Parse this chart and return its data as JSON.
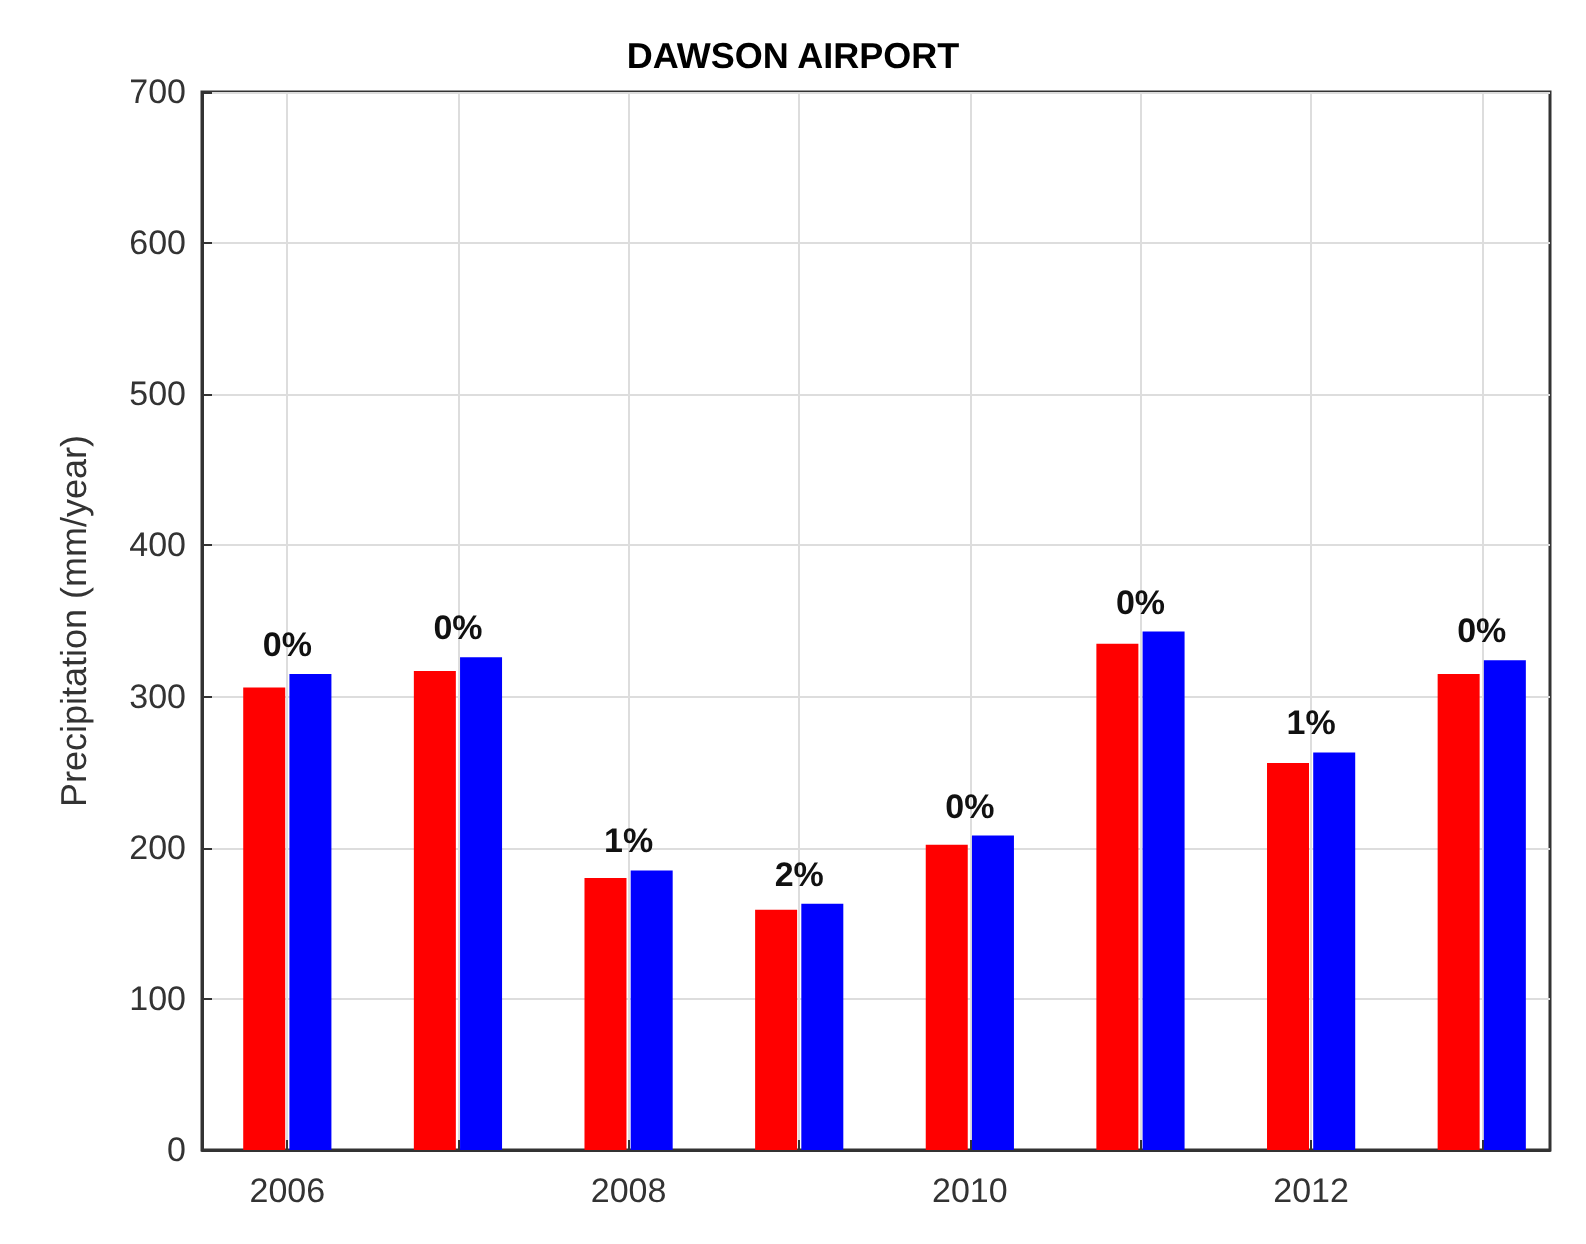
{
  "chart_data": {
    "type": "bar",
    "title": "DAWSON AIRPORT",
    "ylabel": "Precipitation (mm/year)",
    "x": [
      2006,
      2007,
      2008,
      2009,
      2010,
      2011,
      2012,
      2013
    ],
    "series": [
      {
        "color": "#ff0000",
        "values": [
          306,
          317,
          180,
          159,
          202,
          335,
          256,
          315
        ]
      },
      {
        "color": "#0000ff",
        "values": [
          315,
          326,
          185,
          163,
          208,
          343,
          263,
          324
        ]
      }
    ],
    "annotations": [
      {
        "text": "0%",
        "x": 2006,
        "y": 315
      },
      {
        "text": "0%",
        "x": 2007,
        "y": 326
      },
      {
        "text": "1%",
        "x": 2008,
        "y": 185
      },
      {
        "text": "2%",
        "x": 2009,
        "y": 163
      },
      {
        "text": "0%",
        "x": 2010,
        "y": 208
      },
      {
        "text": "0%",
        "x": 2011,
        "y": 343
      },
      {
        "text": "1%",
        "x": 2012,
        "y": 263
      },
      {
        "text": "0%",
        "x": 2013,
        "y": 324
      }
    ],
    "xlim": [
      2005.5,
      2013.4
    ],
    "xticks": [
      2006,
      {
        "value": 2007,
        "label": null
      },
      2008,
      {
        "value": 2009,
        "label": null
      },
      2010,
      {
        "value": 2011,
        "label": null
      },
      2012,
      {
        "value": 2013,
        "label": null
      }
    ],
    "ylim": [
      0,
      700
    ],
    "yticks": [
      0,
      100,
      200,
      300,
      400,
      500,
      600,
      700
    ],
    "grid": true
  }
}
